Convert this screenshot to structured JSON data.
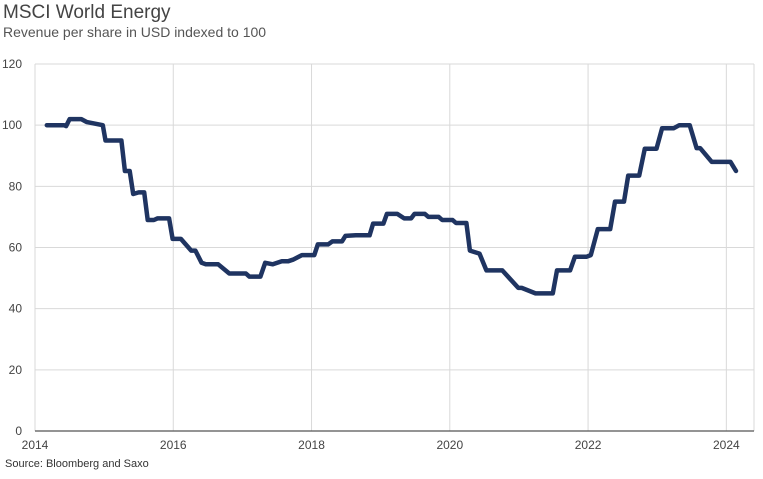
{
  "chart_data": {
    "type": "line",
    "title": "MSCI World Energy",
    "subtitle": "Revenue per share in USD indexed to 100",
    "source": "Source: Bloomberg and Saxo",
    "xlabel": "",
    "ylabel": "",
    "xlim": [
      2014,
      2024.4
    ],
    "ylim": [
      0,
      120
    ],
    "xticks": [
      "2014",
      "2016",
      "2018",
      "2020",
      "2022",
      "2024"
    ],
    "yticks": [
      "0",
      "20",
      "40",
      "60",
      "80",
      "100",
      "120"
    ],
    "grid": true,
    "line_color": "#1f3461",
    "series": [
      {
        "x": [
          2014.17,
          2014.42,
          2014.45,
          2014.5,
          2014.67,
          2014.75,
          2014.98,
          2015.02,
          2015.25,
          2015.3,
          2015.37,
          2015.42,
          2015.5,
          2015.58,
          2015.63,
          2015.72,
          2015.77,
          2015.94,
          2015.99,
          2016.06,
          2016.11,
          2016.26,
          2016.32,
          2016.41,
          2016.47,
          2016.55,
          2016.65,
          2016.81,
          2016.86,
          2017.05,
          2017.1,
          2017.26,
          2017.33,
          2017.44,
          2017.57,
          2017.66,
          2017.73,
          2017.86,
          2017.91,
          2018.04,
          2018.09,
          2018.24,
          2018.3,
          2018.44,
          2018.49,
          2018.64,
          2018.69,
          2018.84,
          2018.89,
          2019.04,
          2019.09,
          2019.24,
          2019.34,
          2019.44,
          2019.49,
          2019.64,
          2019.69,
          2019.84,
          2019.89,
          2020.04,
          2020.09,
          2020.24,
          2020.29,
          2020.43,
          2020.53,
          2020.67,
          2020.76,
          2020.99,
          2021.04,
          2021.24,
          2021.31,
          2021.49,
          2021.55,
          2021.74,
          2021.81,
          2021.98,
          2022.04,
          2022.14,
          2022.24,
          2022.32,
          2022.39,
          2022.52,
          2022.58,
          2022.74,
          2022.82,
          2022.99,
          2023.07,
          2023.24,
          2023.32,
          2023.47,
          2023.57,
          2023.62,
          2023.79,
          2023.87,
          2024.06,
          2024.14
        ],
        "y": [
          100,
          100,
          99.7,
          102,
          102,
          101,
          100,
          95,
          95,
          85,
          85,
          77.5,
          78,
          78,
          69,
          69,
          69.5,
          69.5,
          62.8,
          62.8,
          62.8,
          59,
          59,
          55,
          54.5,
          54.5,
          54.5,
          51.5,
          51.5,
          51.5,
          50.5,
          50.5,
          55,
          54.5,
          55.5,
          55.5,
          56,
          57.5,
          57.5,
          57.5,
          61,
          61,
          62,
          62,
          63.8,
          64,
          64,
          64,
          67.8,
          67.8,
          71,
          71,
          69.5,
          69.5,
          71,
          71,
          70,
          70,
          69,
          69,
          68,
          68,
          59,
          58,
          52.5,
          52.5,
          52.5,
          46.8,
          46.8,
          45,
          45,
          45,
          52.5,
          52.5,
          57,
          57,
          57.5,
          66,
          66,
          66,
          75,
          75,
          83.5,
          83.5,
          92.3,
          92.3,
          99,
          99,
          100,
          100,
          92.5,
          92.5,
          88,
          88,
          88,
          85
        ]
      }
    ]
  }
}
